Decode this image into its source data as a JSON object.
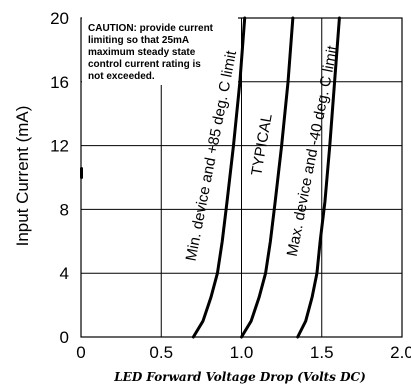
{
  "chart_data": {
    "type": "line",
    "title": "",
    "xlabel": "LED Forward Voltage Drop (Volts DC)",
    "ylabel": "Input Current (mA)",
    "xlim": [
      0,
      2.0
    ],
    "ylim": [
      0,
      20
    ],
    "x_ticks": [
      "0",
      "0.5",
      "1.0",
      "1.5",
      "2.0"
    ],
    "y_ticks": [
      "0",
      "4",
      "8",
      "12",
      "16",
      "20"
    ],
    "grid": true,
    "caution_lines": [
      "CAUTION: provide current",
      "limiting so that 25mA",
      "maximum steady state",
      "control current rating is",
      "not exceeded."
    ],
    "series": [
      {
        "name": "Min. device and +85 deg. C limit",
        "x": [
          0.7,
          0.76,
          0.81,
          0.85,
          0.88,
          0.91,
          0.95,
          0.99,
          1.02
        ],
        "y": [
          0,
          1.0,
          2.5,
          4.0,
          6.0,
          8.5,
          12.0,
          16.0,
          20.0
        ]
      },
      {
        "name": "TYPICAL",
        "x": [
          1.0,
          1.06,
          1.11,
          1.15,
          1.18,
          1.21,
          1.25,
          1.29,
          1.32
        ],
        "y": [
          0,
          1.0,
          2.5,
          4.0,
          6.0,
          8.5,
          12.0,
          16.0,
          20.0
        ]
      },
      {
        "name": "Max. device and -40 deg. C limit",
        "x": [
          1.35,
          1.4,
          1.44,
          1.47,
          1.49,
          1.52,
          1.55,
          1.58,
          1.61
        ],
        "y": [
          0,
          1.0,
          2.5,
          4.0,
          6.0,
          8.5,
          12.0,
          16.0,
          20.0
        ]
      }
    ]
  }
}
